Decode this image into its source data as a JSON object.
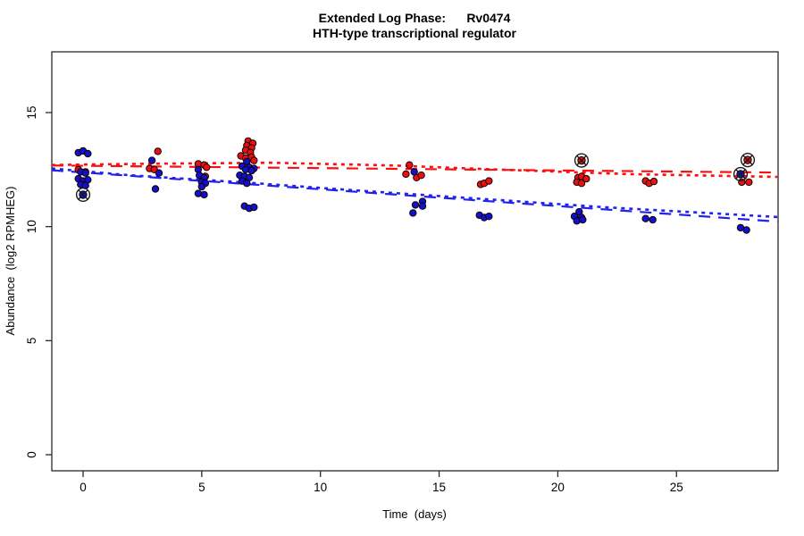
{
  "title": {
    "line1": "Extended Log Phase:      Rv0474",
    "line2": "HTH-type transcriptional regulator"
  },
  "axes": {
    "x": {
      "label": "Time  (days)",
      "ticks": [
        0,
        5,
        10,
        15,
        20,
        25
      ]
    },
    "y": {
      "label": "Abundance  (log2 RPMHEG)",
      "ticks": [
        0,
        5,
        10,
        15
      ]
    }
  },
  "colors": {
    "red_point_fill": "#e81010",
    "blue_point_fill": "#1111cc",
    "red_line": "#fb0f0f",
    "blue_line": "#2222ee",
    "point_edge": "#150000",
    "outlier_ring": "#1a1a1a",
    "axis": "#2a2a2a"
  },
  "chart_data": {
    "type": "scatter",
    "title": "Extended Log Phase: Rv0474 — HTH-type transcriptional regulator",
    "xlabel": "Time (days)",
    "ylabel": "Abundance (log2 RPMHEG)",
    "xlim": [
      -1.32,
      29.25
    ],
    "ylim": [
      -0.7,
      17.66
    ],
    "grid": false,
    "legend": "none",
    "series": [
      {
        "name": "red-condition",
        "marker": "filled-circle",
        "points": [
          [
            -0.2,
            12.5
          ],
          [
            0.1,
            12.4
          ],
          [
            3.15,
            13.3
          ],
          [
            2.8,
            12.55
          ],
          [
            3.0,
            12.5
          ],
          [
            4.85,
            12.75
          ],
          [
            5.1,
            12.7
          ],
          [
            5.2,
            12.6
          ],
          [
            5.15,
            12.2
          ],
          [
            6.95,
            13.75
          ],
          [
            7.15,
            13.65
          ],
          [
            6.9,
            13.55
          ],
          [
            7.1,
            13.45
          ],
          [
            6.85,
            13.35
          ],
          [
            7.05,
            13.25
          ],
          [
            6.65,
            13.1
          ],
          [
            6.85,
            13.0
          ],
          [
            7.1,
            13.05
          ],
          [
            7.2,
            12.9
          ],
          [
            13.75,
            12.7
          ],
          [
            13.6,
            12.3
          ],
          [
            14.05,
            12.15
          ],
          [
            14.25,
            12.25
          ],
          [
            16.75,
            11.85
          ],
          [
            16.9,
            11.9
          ],
          [
            17.1,
            12.0
          ],
          [
            20.85,
            12.15
          ],
          [
            21.0,
            12.2
          ],
          [
            21.2,
            12.1
          ],
          [
            20.8,
            11.95
          ],
          [
            21.0,
            11.9
          ],
          [
            23.7,
            12.0
          ],
          [
            23.85,
            11.9
          ],
          [
            24.05,
            11.98
          ],
          [
            27.75,
            11.95
          ],
          [
            28.05,
            11.95
          ]
        ],
        "circled_outliers": [
          [
            21.0,
            12.9
          ],
          [
            28.0,
            12.92
          ]
        ],
        "trend_linear": [
          [
            -1.32,
            12.68
          ],
          [
            29.25,
            12.37
          ]
        ],
        "trend_smooth": [
          [
            -1.32,
            12.7
          ],
          [
            3,
            12.76
          ],
          [
            8,
            12.8
          ],
          [
            13,
            12.68
          ],
          [
            18,
            12.48
          ],
          [
            23,
            12.3
          ],
          [
            29.25,
            12.18
          ]
        ]
      },
      {
        "name": "blue-condition",
        "marker": "filled-circle",
        "points": [
          [
            -0.2,
            13.24
          ],
          [
            0.0,
            13.32
          ],
          [
            0.2,
            13.2
          ],
          [
            -0.1,
            12.4
          ],
          [
            0.1,
            12.35
          ],
          [
            -0.2,
            12.1
          ],
          [
            0.0,
            12.0
          ],
          [
            0.2,
            12.05
          ],
          [
            -0.1,
            11.85
          ],
          [
            0.1,
            11.8
          ],
          [
            2.9,
            12.9
          ],
          [
            3.2,
            12.35
          ],
          [
            3.05,
            11.65
          ],
          [
            4.85,
            12.5
          ],
          [
            4.9,
            12.25
          ],
          [
            5.1,
            12.15
          ],
          [
            5.0,
            11.95
          ],
          [
            5.15,
            11.9
          ],
          [
            5.0,
            11.75
          ],
          [
            4.85,
            11.45
          ],
          [
            5.1,
            11.4
          ],
          [
            6.9,
            12.85
          ],
          [
            6.7,
            12.65
          ],
          [
            7.0,
            12.6
          ],
          [
            7.2,
            12.55
          ],
          [
            6.85,
            12.5
          ],
          [
            7.1,
            12.45
          ],
          [
            6.6,
            12.25
          ],
          [
            6.8,
            12.2
          ],
          [
            7.0,
            12.15
          ],
          [
            6.7,
            12.0
          ],
          [
            6.9,
            11.9
          ],
          [
            6.8,
            10.9
          ],
          [
            7.0,
            10.8
          ],
          [
            7.2,
            10.85
          ],
          [
            13.95,
            12.4
          ],
          [
            14.0,
            10.95
          ],
          [
            13.9,
            10.6
          ],
          [
            14.3,
            11.1
          ],
          [
            14.3,
            10.9
          ],
          [
            16.7,
            10.5
          ],
          [
            16.9,
            10.4
          ],
          [
            17.1,
            10.45
          ],
          [
            20.9,
            10.65
          ],
          [
            20.7,
            10.45
          ],
          [
            21.0,
            10.4
          ],
          [
            20.8,
            10.25
          ],
          [
            21.05,
            10.3
          ],
          [
            23.7,
            10.35
          ],
          [
            24.0,
            10.3
          ],
          [
            27.7,
            9.95
          ],
          [
            27.95,
            9.85
          ]
        ],
        "circled_outliers": [
          [
            0.0,
            11.4
          ],
          [
            27.7,
            12.3
          ]
        ],
        "trend_linear": [
          [
            -1.32,
            12.47
          ],
          [
            29.25,
            10.22
          ]
        ],
        "trend_smooth": [
          [
            -1.32,
            12.55
          ],
          [
            2,
            12.25
          ],
          [
            7,
            11.92
          ],
          [
            12,
            11.55
          ],
          [
            17,
            11.2
          ],
          [
            22,
            10.85
          ],
          [
            29.25,
            10.42
          ]
        ]
      }
    ]
  }
}
